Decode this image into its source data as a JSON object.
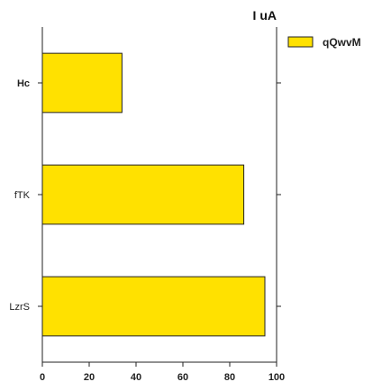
{
  "chart_data": {
    "type": "bar",
    "orientation": "horizontal",
    "title": "I uA",
    "xlabel": "",
    "ylabel": "",
    "categories": [
      "Hc",
      "fTK",
      "LzrS"
    ],
    "series": [
      {
        "name": "qQwvM",
        "values": [
          34,
          86,
          95
        ],
        "color": "#FFE100"
      }
    ],
    "xlim": [
      0,
      100
    ],
    "xticks": [
      "0",
      "20",
      "40",
      "60",
      "80",
      "100"
    ],
    "xtick_values": [
      0,
      20,
      40,
      60,
      80,
      100
    ],
    "grid": false,
    "legend_position": "outside-top-right",
    "bold_categories": [
      "Hc"
    ]
  }
}
